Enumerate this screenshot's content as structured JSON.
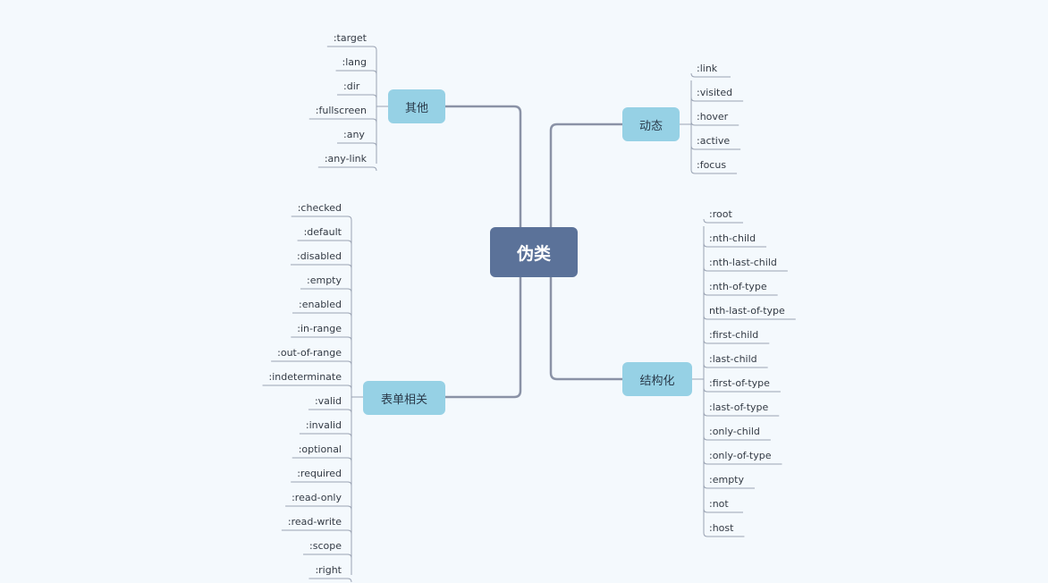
{
  "root": {
    "label": "伪类"
  },
  "branches": {
    "other": {
      "label": "其他",
      "items": [
        ":target",
        ":lang",
        ":dir",
        ":fullscreen",
        ":any",
        ":any-link"
      ]
    },
    "dynamic": {
      "label": "动态",
      "items": [
        ":link",
        ":visited",
        ":hover",
        ":active",
        ":focus"
      ]
    },
    "form": {
      "label": "表单相关",
      "items": [
        ":checked",
        ":default",
        ":disabled",
        ":empty",
        ":enabled",
        ":in-range",
        ":out-of-range",
        ":indeterminate",
        ":valid",
        ":invalid",
        ":optional",
        ":required",
        ":read-only",
        ":read-write",
        ":scope",
        ":right"
      ]
    },
    "structural": {
      "label": "结构化",
      "items": [
        ":root",
        ":nth-child",
        ":nth-last-child",
        ":nth-of-type",
        "nth-last-of-type",
        ":first-child",
        ":last-child",
        ":first-of-type",
        ":last-of-type",
        ":only-child",
        ":only-of-type",
        ":empty",
        ":not",
        ":host"
      ]
    }
  },
  "colors": {
    "background": "#f4f9fd",
    "root_fill": "#5b7299",
    "branch_fill": "#96d1e5",
    "main_connector": "#8a92a6",
    "leaf_line": "#9aa3b3"
  }
}
